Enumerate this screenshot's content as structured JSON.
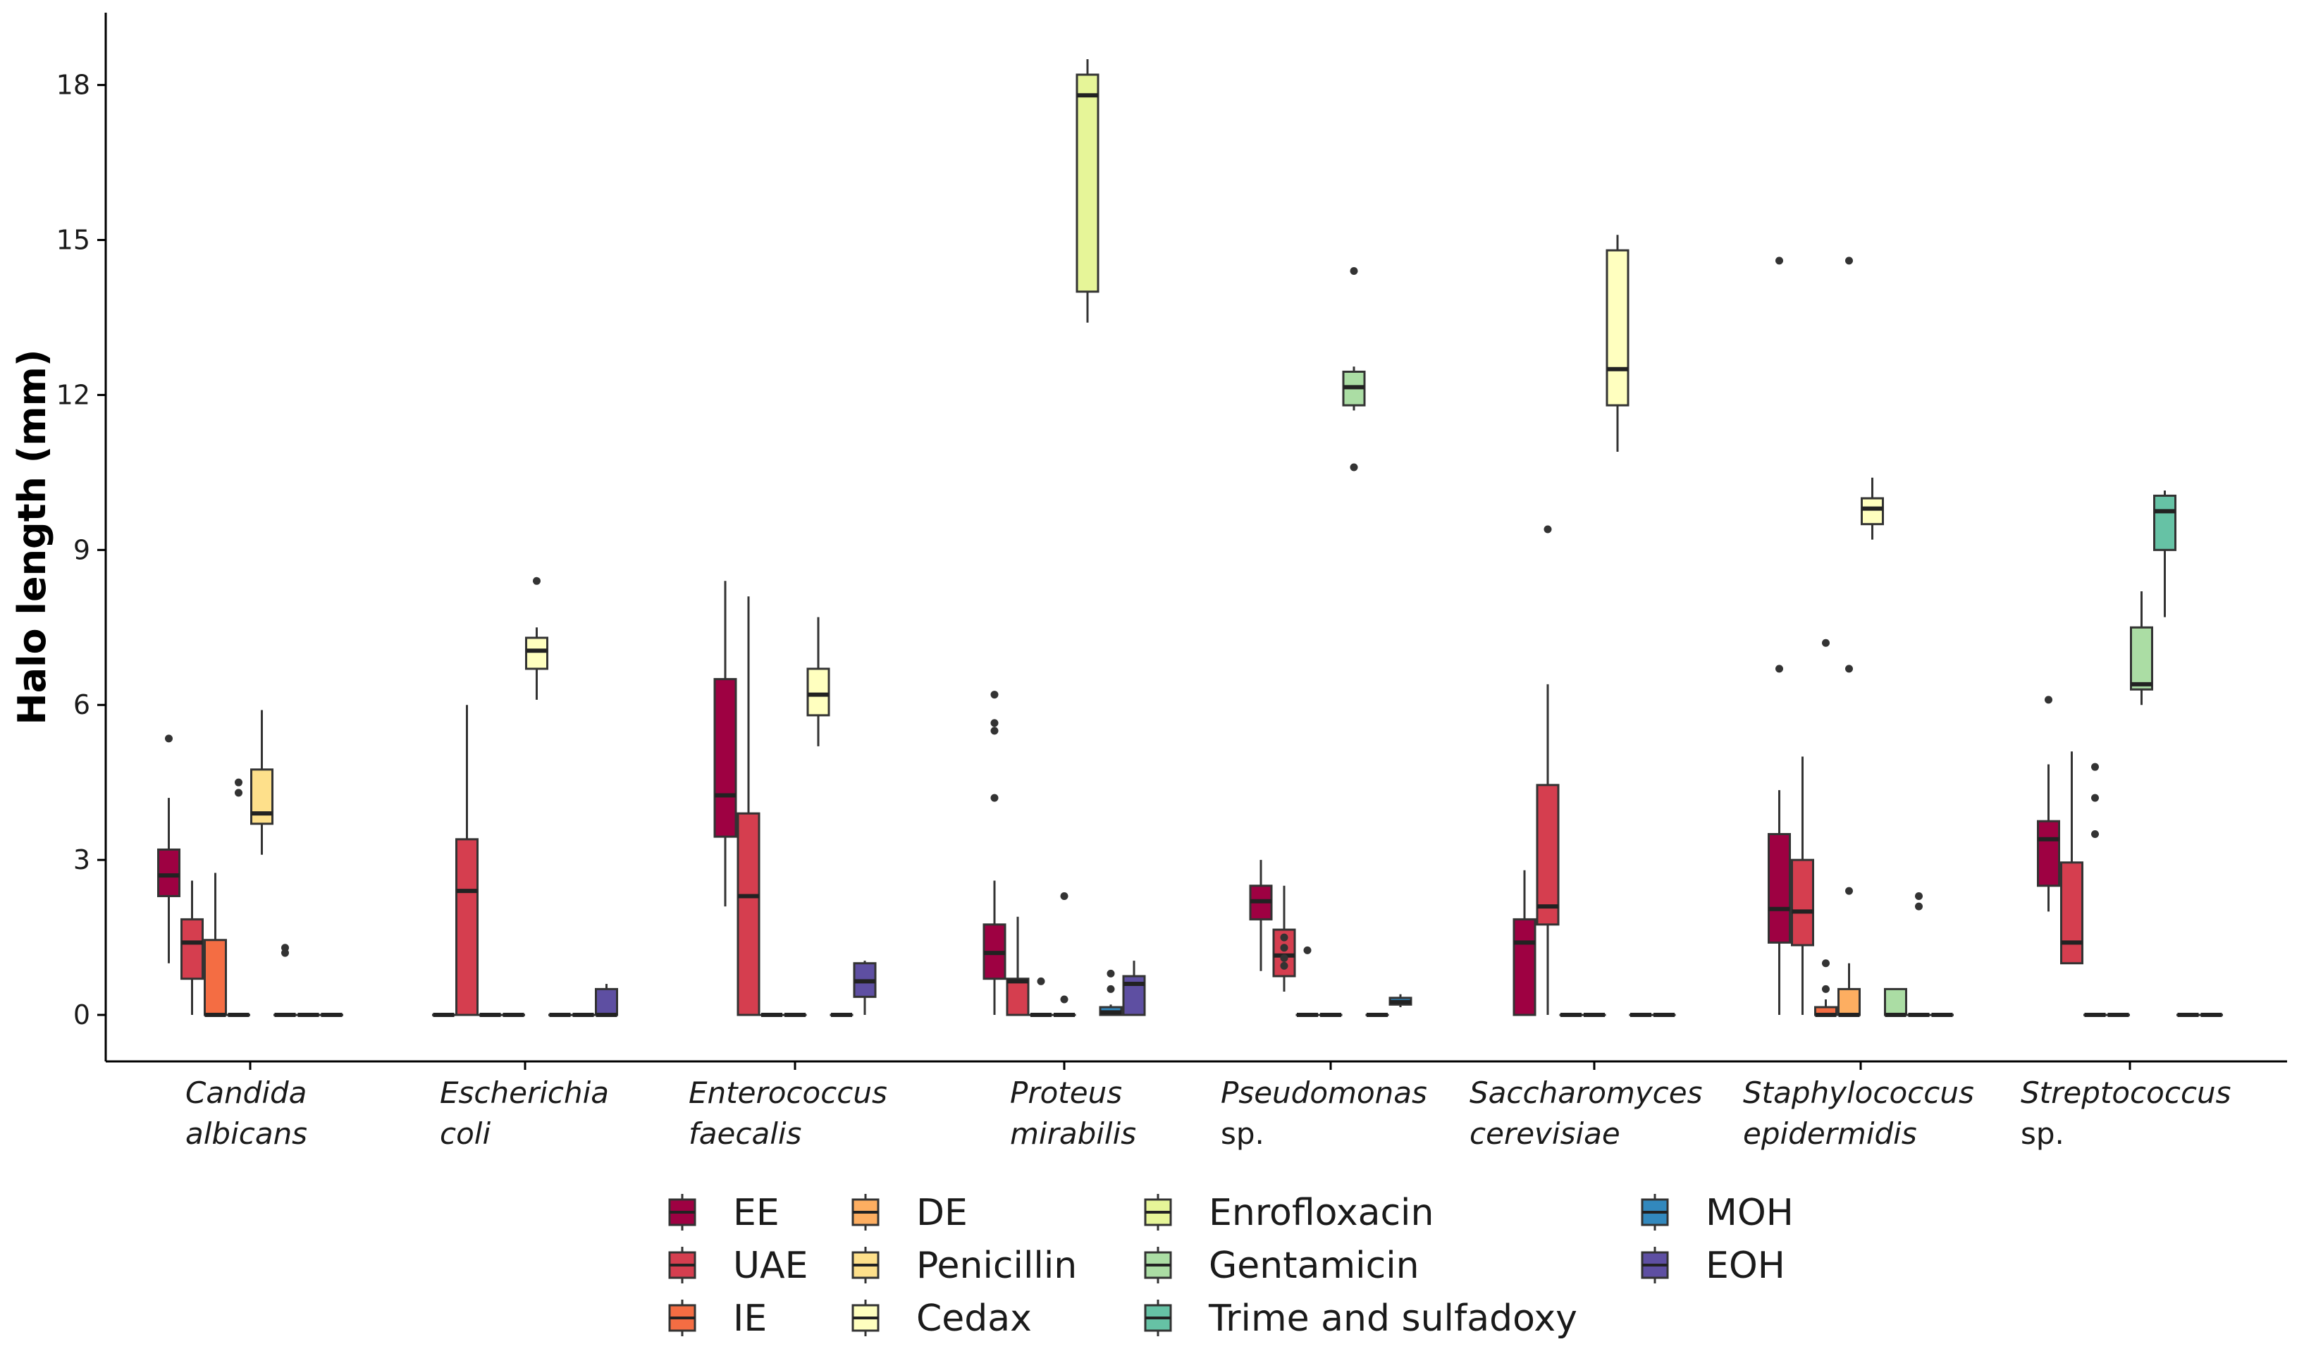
{
  "chart_data": {
    "type": "boxplot",
    "ylabel": "Halo length (mm)",
    "xlabel": "",
    "ylim": [
      -0.9,
      19.4
    ],
    "yticks": [
      0,
      3,
      6,
      9,
      12,
      15,
      18
    ],
    "grid": false,
    "legend_position": "bottom",
    "categories": [
      {
        "italic": "Candida",
        "second": "albicans",
        "second_italic": true
      },
      {
        "italic": "Escherichia",
        "second": "coli",
        "second_italic": true
      },
      {
        "italic": "Enterococcus",
        "second": "faecalis",
        "second_italic": true
      },
      {
        "italic": "Proteus",
        "second": "mirabilis",
        "second_italic": true
      },
      {
        "italic": "Pseudomonas",
        "second": "sp.",
        "second_italic": false
      },
      {
        "italic": "Saccharomyces",
        "second": "cerevisiae",
        "second_italic": true
      },
      {
        "italic": "Staphylococcus",
        "second": "epidermidis",
        "second_italic": true
      },
      {
        "italic": "Streptococcus",
        "second": "sp.",
        "second_italic": false
      }
    ],
    "series": [
      {
        "name": "EE",
        "color": "#9E0142"
      },
      {
        "name": "UAE",
        "color": "#D53E4F"
      },
      {
        "name": "IE",
        "color": "#F46D43"
      },
      {
        "name": "DE",
        "color": "#FDAE61"
      },
      {
        "name": "Penicillin",
        "color": "#FEE08B"
      },
      {
        "name": "Cedax",
        "color": "#FFFFBF"
      },
      {
        "name": "Enrofloxacin",
        "color": "#E6F598"
      },
      {
        "name": "Gentamicin",
        "color": "#ABDDA4"
      },
      {
        "name": "Trime and sulfadoxy",
        "color": "#66C2A5"
      },
      {
        "name": "MOH",
        "color": "#3288BD"
      },
      {
        "name": "EOH",
        "color": "#5E4FA2"
      }
    ],
    "boxes": [
      [
        {
          "series": 0,
          "q1": 2.3,
          "median": 2.7,
          "q3": 3.2,
          "lower": 1.0,
          "upper": 4.2,
          "outliers": [
            5.35
          ]
        },
        {
          "series": 1,
          "q1": 0.7,
          "median": 1.4,
          "q3": 1.85,
          "lower": 0.0,
          "upper": 2.6,
          "outliers": []
        },
        {
          "series": 2,
          "q1": 0.0,
          "median": 0.0,
          "q3": 1.45,
          "lower": 0.0,
          "upper": 2.75,
          "outliers": []
        },
        {
          "series": 3,
          "q1": 0.0,
          "median": 0.0,
          "q3": 0.0,
          "lower": 0.0,
          "upper": 0.0,
          "outliers": [
            4.3,
            4.5
          ]
        },
        {
          "series": 4,
          "q1": 3.7,
          "median": 3.9,
          "q3": 4.75,
          "lower": 3.1,
          "upper": 5.9,
          "outliers": []
        },
        {
          "series": 5,
          "q1": 0.0,
          "median": 0.0,
          "q3": 0.0,
          "lower": 0.0,
          "upper": 0.0,
          "outliers": [
            1.2,
            1.3
          ]
        },
        {
          "series": 6,
          "q1": 0.0,
          "median": 0.0,
          "q3": 0.0,
          "lower": 0.0,
          "upper": 0.0,
          "outliers": []
        },
        {
          "series": 7,
          "q1": 0.0,
          "median": 0.0,
          "q3": 0.0,
          "lower": 0.0,
          "upper": 0.0,
          "outliers": []
        }
      ],
      [
        {
          "series": 0,
          "q1": 0.0,
          "median": 0.0,
          "q3": 0.0,
          "lower": 0.0,
          "upper": 0.0,
          "outliers": []
        },
        {
          "series": 1,
          "q1": 0.0,
          "median": 2.4,
          "q3": 3.4,
          "lower": 0.0,
          "upper": 6.0,
          "outliers": []
        },
        {
          "series": 2,
          "q1": 0.0,
          "median": 0.0,
          "q3": 0.0,
          "lower": 0.0,
          "upper": 0.0,
          "outliers": []
        },
        {
          "series": 3,
          "q1": 0.0,
          "median": 0.0,
          "q3": 0.0,
          "lower": 0.0,
          "upper": 0.0,
          "outliers": []
        },
        {
          "series": 5,
          "q1": 6.7,
          "median": 7.05,
          "q3": 7.3,
          "lower": 6.1,
          "upper": 7.5,
          "outliers": [
            8.4
          ]
        },
        {
          "series": 6,
          "q1": 0.0,
          "median": 0.0,
          "q3": 0.0,
          "lower": 0.0,
          "upper": 0.0,
          "outliers": []
        },
        {
          "series": 7,
          "q1": 0.0,
          "median": 0.0,
          "q3": 0.0,
          "lower": 0.0,
          "upper": 0.0,
          "outliers": []
        },
        {
          "series": 10,
          "q1": 0.0,
          "median": 0.0,
          "q3": 0.5,
          "lower": 0.0,
          "upper": 0.6,
          "outliers": []
        }
      ],
      [
        {
          "series": 0,
          "q1": 3.45,
          "median": 4.25,
          "q3": 6.5,
          "lower": 2.1,
          "upper": 8.4,
          "outliers": []
        },
        {
          "series": 1,
          "q1": 0.0,
          "median": 2.3,
          "q3": 3.9,
          "lower": 0.0,
          "upper": 8.1,
          "outliers": []
        },
        {
          "series": 2,
          "q1": 0.0,
          "median": 0.0,
          "q3": 0.0,
          "lower": 0.0,
          "upper": 0.0,
          "outliers": []
        },
        {
          "series": 3,
          "q1": 0.0,
          "median": 0.0,
          "q3": 0.0,
          "lower": 0.0,
          "upper": 0.0,
          "outliers": []
        },
        {
          "series": 5,
          "q1": 5.8,
          "median": 6.2,
          "q3": 6.7,
          "lower": 5.2,
          "upper": 7.7,
          "outliers": []
        },
        {
          "series": 6,
          "q1": 0.0,
          "median": 0.0,
          "q3": 0.0,
          "lower": 0.0,
          "upper": 0.0,
          "outliers": []
        },
        {
          "series": 10,
          "q1": 0.35,
          "median": 0.65,
          "q3": 1.0,
          "lower": 0.0,
          "upper": 1.05,
          "outliers": []
        }
      ],
      [
        {
          "series": 0,
          "q1": 0.7,
          "median": 1.2,
          "q3": 1.75,
          "lower": 0.0,
          "upper": 2.6,
          "outliers": [
            4.2,
            5.5,
            5.65,
            6.2
          ]
        },
        {
          "series": 1,
          "q1": 0.0,
          "median": 0.65,
          "q3": 0.7,
          "lower": 0.0,
          "upper": 1.9,
          "outliers": []
        },
        {
          "series": 2,
          "q1": 0.0,
          "median": 0.0,
          "q3": 0.0,
          "lower": 0.0,
          "upper": 0.0,
          "outliers": [
            0.65
          ]
        },
        {
          "series": 3,
          "q1": 0.0,
          "median": 0.0,
          "q3": 0.0,
          "lower": 0.0,
          "upper": 0.0,
          "outliers": [
            0.3,
            2.3
          ]
        },
        {
          "series": 6,
          "q1": 14.0,
          "median": 17.8,
          "q3": 18.2,
          "lower": 13.4,
          "upper": 18.5,
          "outliers": []
        },
        {
          "series": 9,
          "q1": 0.0,
          "median": 0.05,
          "q3": 0.15,
          "lower": 0.0,
          "upper": 0.2,
          "outliers": [
            0.5,
            0.8
          ]
        },
        {
          "series": 10,
          "q1": 0.0,
          "median": 0.6,
          "q3": 0.75,
          "lower": 0.0,
          "upper": 1.05,
          "outliers": []
        }
      ],
      [
        {
          "series": 0,
          "q1": 1.85,
          "median": 2.2,
          "q3": 2.5,
          "lower": 0.85,
          "upper": 3.0,
          "outliers": []
        },
        {
          "series": 1,
          "q1": 0.75,
          "median": 1.15,
          "q3": 1.65,
          "lower": 0.45,
          "upper": 2.5,
          "outliers": [
            0.95,
            1.1,
            1.3,
            1.5
          ]
        },
        {
          "series": 2,
          "q1": 0.0,
          "median": 0.0,
          "q3": 0.0,
          "lower": 0.0,
          "upper": 0.0,
          "outliers": [
            1.25
          ]
        },
        {
          "series": 3,
          "q1": 0.0,
          "median": 0.0,
          "q3": 0.0,
          "lower": 0.0,
          "upper": 0.0,
          "outliers": []
        },
        {
          "series": 7,
          "q1": 11.8,
          "median": 12.15,
          "q3": 12.45,
          "lower": 11.7,
          "upper": 12.55,
          "outliers": [
            10.6,
            14.4
          ]
        },
        {
          "series": 8,
          "q1": 0.0,
          "median": 0.0,
          "q3": 0.0,
          "lower": 0.0,
          "upper": 0.0,
          "outliers": []
        },
        {
          "series": 9,
          "q1": 0.2,
          "median": 0.25,
          "q3": 0.33,
          "lower": 0.15,
          "upper": 0.4,
          "outliers": []
        }
      ],
      [
        {
          "series": 0,
          "q1": 0.0,
          "median": 1.4,
          "q3": 1.85,
          "lower": 0.0,
          "upper": 2.8,
          "outliers": []
        },
        {
          "series": 1,
          "q1": 1.75,
          "median": 2.1,
          "q3": 4.45,
          "lower": 0.0,
          "upper": 6.4,
          "outliers": [
            9.4
          ]
        },
        {
          "series": 2,
          "q1": 0.0,
          "median": 0.0,
          "q3": 0.0,
          "lower": 0.0,
          "upper": 0.0,
          "outliers": []
        },
        {
          "series": 3,
          "q1": 0.0,
          "median": 0.0,
          "q3": 0.0,
          "lower": 0.0,
          "upper": 0.0,
          "outliers": []
        },
        {
          "series": 5,
          "q1": 11.8,
          "median": 12.5,
          "q3": 14.8,
          "lower": 10.9,
          "upper": 15.1,
          "outliers": []
        },
        {
          "series": 6,
          "q1": 0.0,
          "median": 0.0,
          "q3": 0.0,
          "lower": 0.0,
          "upper": 0.0,
          "outliers": []
        },
        {
          "series": 7,
          "q1": 0.0,
          "median": 0.0,
          "q3": 0.0,
          "lower": 0.0,
          "upper": 0.0,
          "outliers": []
        }
      ],
      [
        {
          "series": 0,
          "q1": 1.4,
          "median": 2.05,
          "q3": 3.5,
          "lower": 0.0,
          "upper": 4.35,
          "outliers": [
            6.7,
            14.6
          ]
        },
        {
          "series": 1,
          "q1": 1.35,
          "median": 2.0,
          "q3": 3.0,
          "lower": 0.0,
          "upper": 5.0,
          "outliers": []
        },
        {
          "series": 2,
          "q1": 0.0,
          "median": 0.0,
          "q3": 0.15,
          "lower": 0.0,
          "upper": 0.3,
          "outliers": [
            0.5,
            1.0,
            7.2
          ]
        },
        {
          "series": 3,
          "q1": 0.0,
          "median": 0.0,
          "q3": 0.5,
          "lower": 0.0,
          "upper": 1.0,
          "outliers": [
            2.4,
            6.7,
            14.6
          ]
        },
        {
          "series": 5,
          "q1": 9.5,
          "median": 9.8,
          "q3": 10.0,
          "lower": 9.2,
          "upper": 10.4,
          "outliers": []
        },
        {
          "series": 7,
          "q1": 0.0,
          "median": 0.0,
          "q3": 0.5,
          "lower": 0.0,
          "upper": 0.5,
          "outliers": []
        },
        {
          "series": 8,
          "q1": 0.0,
          "median": 0.0,
          "q3": 0.0,
          "lower": 0.0,
          "upper": 0.0,
          "outliers": [
            2.1,
            2.3
          ]
        },
        {
          "series": 9,
          "q1": 0.0,
          "median": 0.0,
          "q3": 0.0,
          "lower": 0.0,
          "upper": 0.0,
          "outliers": []
        }
      ],
      [
        {
          "series": 0,
          "q1": 2.5,
          "median": 3.4,
          "q3": 3.75,
          "lower": 2.0,
          "upper": 4.85,
          "outliers": [
            6.1
          ]
        },
        {
          "series": 1,
          "q1": 1.0,
          "median": 1.4,
          "q3": 2.95,
          "lower": 1.0,
          "upper": 5.1,
          "outliers": []
        },
        {
          "series": 2,
          "q1": 0.0,
          "median": 0.0,
          "q3": 0.0,
          "lower": 0.0,
          "upper": 0.0,
          "outliers": [
            3.5,
            4.2,
            4.8
          ]
        },
        {
          "series": 3,
          "q1": 0.0,
          "median": 0.0,
          "q3": 0.0,
          "lower": 0.0,
          "upper": 0.0,
          "outliers": []
        },
        {
          "series": 7,
          "q1": 6.3,
          "median": 6.4,
          "q3": 7.5,
          "lower": 6.0,
          "upper": 8.2,
          "outliers": []
        },
        {
          "series": 8,
          "q1": 9.0,
          "median": 9.75,
          "q3": 10.05,
          "lower": 7.7,
          "upper": 10.15,
          "outliers": []
        },
        {
          "series": 9,
          "q1": 0.0,
          "median": 0.0,
          "q3": 0.0,
          "lower": 0.0,
          "upper": 0.0,
          "outliers": []
        },
        {
          "series": 10,
          "q1": 0.0,
          "median": 0.0,
          "q3": 0.0,
          "lower": 0.0,
          "upper": 0.0,
          "outliers": []
        }
      ]
    ]
  }
}
